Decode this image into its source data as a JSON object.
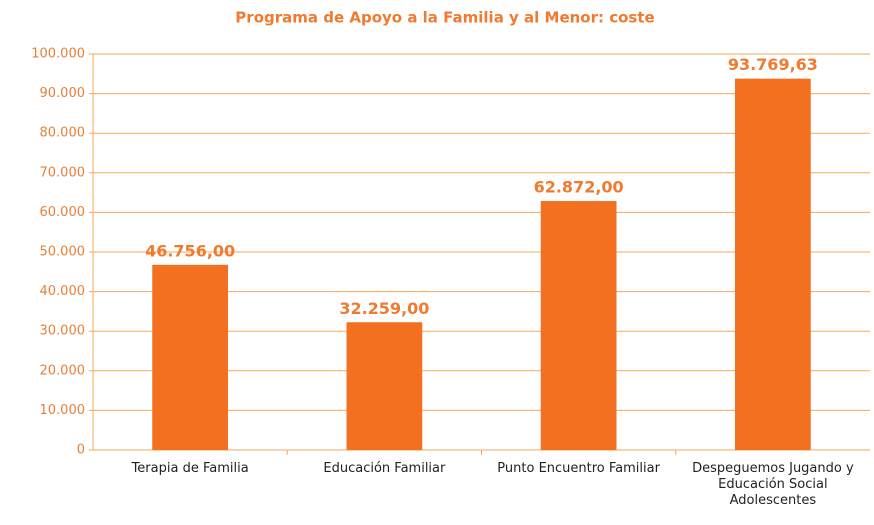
{
  "chart_data": {
    "type": "bar",
    "title": "Programa de Apoyo a la Familia y al Menor: coste",
    "categories": [
      "Terapia de Familia",
      "Educación Familiar",
      "Punto Encuentro Familiar",
      "Despeguemos Jugando y Educación Social Adolescentes"
    ],
    "values": [
      46756,
      32259,
      62872,
      93769.63
    ],
    "value_labels": [
      "46.756,00",
      "32.259,00",
      "62.872,00",
      "93.769,63"
    ],
    "color": "#f37021",
    "ylim": [
      0,
      100000
    ],
    "yticks": [
      0,
      {
        "value": 10000,
        "label": "10.000"
      },
      {
        "value": 20000,
        "label": "20.000"
      },
      {
        "value": 30000,
        "label": "30.000"
      },
      {
        "value": 40000,
        "label": "40.000"
      },
      {
        "value": 50000,
        "label": "50.000"
      },
      {
        "value": 60000,
        "label": "60.000"
      },
      {
        "value": 70000,
        "label": "70.000"
      },
      {
        "value": 80000,
        "label": "80.000"
      },
      {
        "value": 90000,
        "label": "90.000"
      },
      {
        "value": 100000,
        "label": "100.000"
      }
    ],
    "grid": true
  }
}
